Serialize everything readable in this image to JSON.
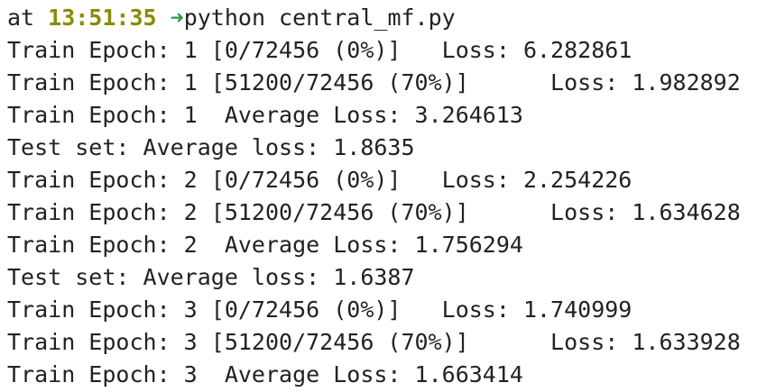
{
  "prompt": {
    "prefix": "at ",
    "time": "13:51:35",
    "arrow": " ➜",
    "command": "python central_mf.py"
  },
  "output_lines": [
    "Train Epoch: 1 [0/72456 (0%)]   Loss: 6.282861",
    "Train Epoch: 1 [51200/72456 (70%)]      Loss: 1.982892",
    "Train Epoch: 1  Average Loss: 3.264613",
    "Test set: Average loss: 1.8635",
    "Train Epoch: 2 [0/72456 (0%)]   Loss: 2.254226",
    "Train Epoch: 2 [51200/72456 (70%)]      Loss: 1.634628",
    "Train Epoch: 2  Average Loss: 1.756294",
    "Test set: Average loss: 1.6387",
    "Train Epoch: 3 [0/72456 (0%)]   Loss: 1.740999",
    "Train Epoch: 3 [51200/72456 (70%)]      Loss: 1.633928",
    "Train Epoch: 3  Average Loss: 1.663414"
  ],
  "colors": {
    "background": "#ffffff",
    "text": "#222222",
    "time": "#8a8a00",
    "arrow": "#2e9a3e"
  }
}
